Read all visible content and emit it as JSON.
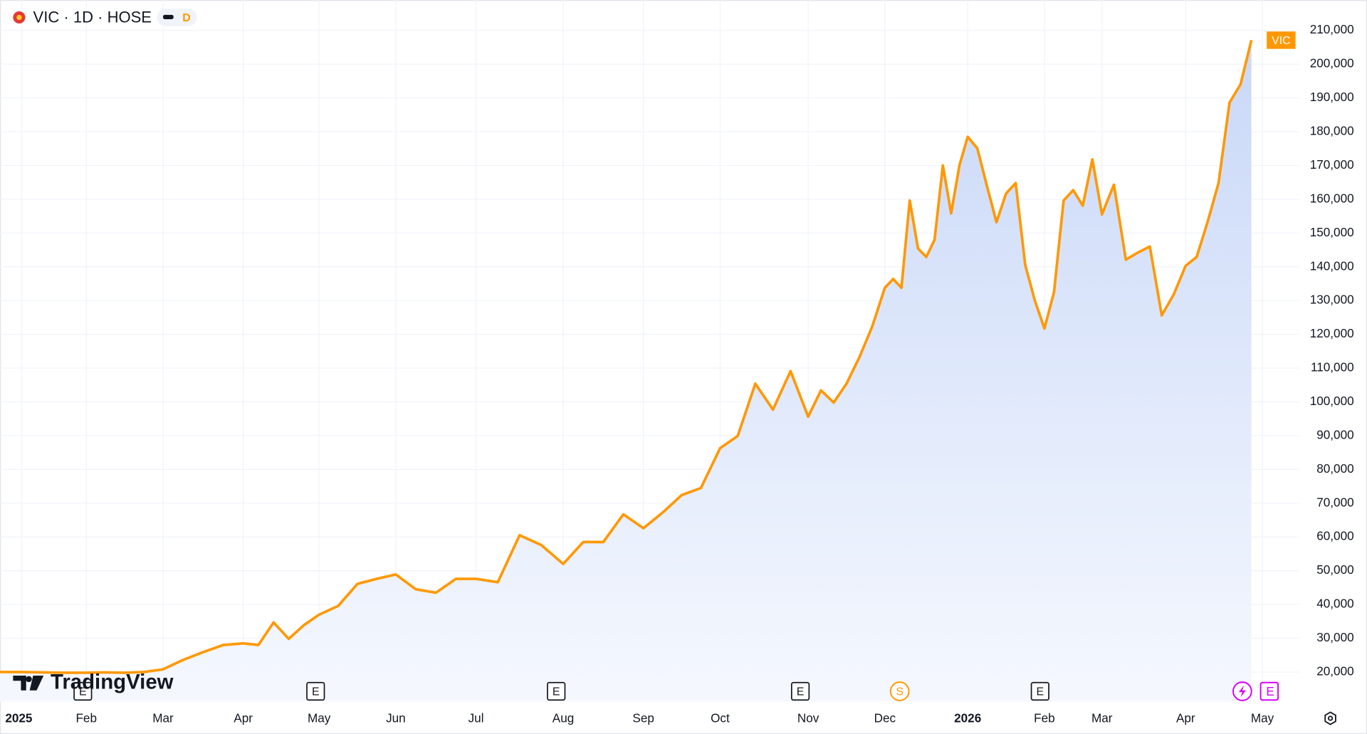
{
  "header": {
    "symbol": "VIC · 1D · HOSE",
    "badge": "D"
  },
  "logo": "TradingView",
  "events": [
    "E",
    "E",
    "E",
    "E",
    "S",
    "E",
    "E"
  ],
  "chart_data": {
    "type": "line",
    "categories": [
      "2025",
      null,
      null,
      null,
      "Feb",
      null,
      null,
      null,
      "Mar",
      null,
      null,
      null,
      "Apr",
      null,
      null,
      null,
      null,
      "May",
      null,
      null,
      null,
      "Jun",
      null,
      null,
      null,
      "Jul",
      null,
      null,
      null,
      "Aug",
      null,
      null,
      null,
      "Sep",
      null,
      null,
      null,
      "Oct",
      null,
      null,
      null,
      null,
      "Nov",
      null,
      null,
      null,
      null,
      null,
      "Dec",
      null,
      null,
      null,
      null,
      null,
      null,
      null,
      null,
      null,
      "2026",
      null,
      null,
      null,
      null,
      null,
      null,
      null,
      "Feb",
      null,
      null,
      null,
      null,
      null,
      "Mar",
      null,
      null,
      null,
      null,
      null,
      null,
      "Apr",
      null,
      null,
      null,
      null,
      null,
      null,
      "May"
    ],
    "series": [
      {
        "name": "VIC",
        "color": "#ff9800",
        "values": [
          20000,
          20000,
          19900,
          19800,
          19800,
          19900,
          19800,
          20000,
          20800,
          23600,
          25900,
          28000,
          28500,
          28000,
          34700,
          29800,
          33900,
          37000,
          39600,
          46100,
          47600,
          48900,
          44500,
          43500,
          47600,
          47600,
          46600,
          60500,
          57600,
          52000,
          58500,
          58500,
          66700,
          62600,
          67200,
          72400,
          74500,
          86300,
          89900,
          105400,
          97700,
          109100,
          95600,
          103400,
          99800,
          105400,
          113200,
          122200,
          133800,
          136400,
          133800,
          159600,
          145400,
          142900,
          148000,
          170000,
          155800,
          170000,
          178500,
          175100,
          164000,
          153200,
          161700,
          164800,
          140500,
          130000,
          121700,
          132500,
          159600,
          162700,
          158100,
          171800,
          155500,
          164300,
          142100,
          144200,
          146000,
          125600,
          131800,
          140300,
          142900,
          153200,
          164800,
          188600,
          194000,
          207100,
          null
        ]
      }
    ],
    "ylim": [
      11200,
      219000
    ],
    "yticks": [
      {
        "value": 20000,
        "label": "20,000"
      },
      {
        "value": 30000,
        "label": "30,000"
      },
      {
        "value": 40000,
        "label": "40,000"
      },
      {
        "value": 50000,
        "label": "50,000"
      },
      {
        "value": 60000,
        "label": "60,000"
      },
      {
        "value": 70000,
        "label": "70,000"
      },
      {
        "value": 80000,
        "label": "80,000"
      },
      {
        "value": 90000,
        "label": "90,000"
      },
      {
        "value": 100000,
        "label": "100,000"
      },
      {
        "value": 110000,
        "label": "110,000"
      },
      {
        "value": 120000,
        "label": "120,000"
      },
      {
        "value": 130000,
        "label": "130,000"
      },
      {
        "value": 140000,
        "label": "140,000"
      },
      {
        "value": 150000,
        "label": "150,000"
      },
      {
        "value": 160000,
        "label": "160,000"
      },
      {
        "value": 170000,
        "label": "170,000"
      },
      {
        "value": 180000,
        "label": "180,000"
      },
      {
        "value": 190000,
        "label": "190,000"
      },
      {
        "value": 200000,
        "label": "200,000"
      },
      {
        "value": 210000,
        "label": "210,000"
      }
    ],
    "grid": true
  }
}
